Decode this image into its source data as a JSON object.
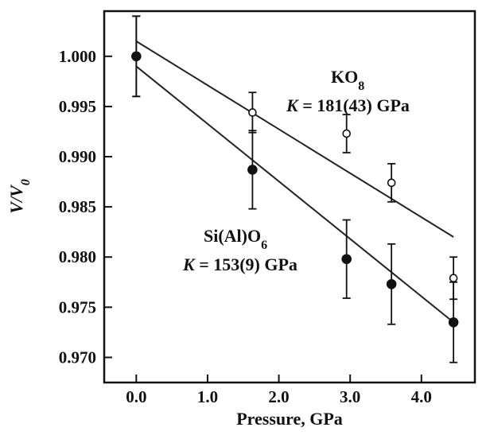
{
  "chart_data": {
    "type": "scatter",
    "xlabel": "Pressure, GPa",
    "ylabel": {
      "main": "V/V",
      "sub": "0"
    },
    "xlim": [
      -0.45,
      4.75
    ],
    "ylim": [
      0.9675,
      1.0045
    ],
    "x_ticks": [
      0.0,
      1.0,
      2.0,
      3.0,
      4.0
    ],
    "x_tick_labels": [
      "0.0",
      "1.0",
      "2.0",
      "3.0",
      "4.0"
    ],
    "y_ticks": [
      0.97,
      0.975,
      0.98,
      0.985,
      0.99,
      0.995,
      1.0
    ],
    "y_tick_labels": [
      "0.970",
      "0.975",
      "0.980",
      "0.985",
      "0.990",
      "0.995",
      "1.000"
    ],
    "grid": false,
    "series": [
      {
        "label_line1": {
          "main": "KO",
          "sub": "8"
        },
        "label_line2": {
          "symbol": "K",
          "text": " = 181(43) GPa"
        },
        "marker": "open-circle",
        "points": [
          {
            "x": 0.0,
            "y": 1.0,
            "err": 0.004
          },
          {
            "x": 1.63,
            "y": 0.9944,
            "err": 0.002
          },
          {
            "x": 2.95,
            "y": 0.9923,
            "err": 0.0019
          },
          {
            "x": 3.58,
            "y": 0.9874,
            "err": 0.0019
          },
          {
            "x": 4.45,
            "y": 0.9779,
            "err": 0.0021
          }
        ],
        "fit": {
          "x": [
            0.0,
            4.45
          ],
          "y": [
            1.0015,
            0.982
          ]
        }
      },
      {
        "label_line1": {
          "main": "Si(Al)O",
          "sub": "6"
        },
        "label_line2": {
          "symbol": "K",
          "text": " = 153(9) GPa"
        },
        "marker": "filled-circle",
        "points": [
          {
            "x": 0.0,
            "y": 1.0,
            "err": 0.004
          },
          {
            "x": 1.63,
            "y": 0.9887,
            "err": 0.0039
          },
          {
            "x": 2.95,
            "y": 0.9798,
            "err": 0.0039
          },
          {
            "x": 3.58,
            "y": 0.9773,
            "err": 0.004
          },
          {
            "x": 4.45,
            "y": 0.9735,
            "err": 0.004
          }
        ],
        "fit": {
          "x": [
            0.0,
            4.45
          ],
          "y": [
            0.999,
            0.9735
          ]
        }
      }
    ]
  }
}
